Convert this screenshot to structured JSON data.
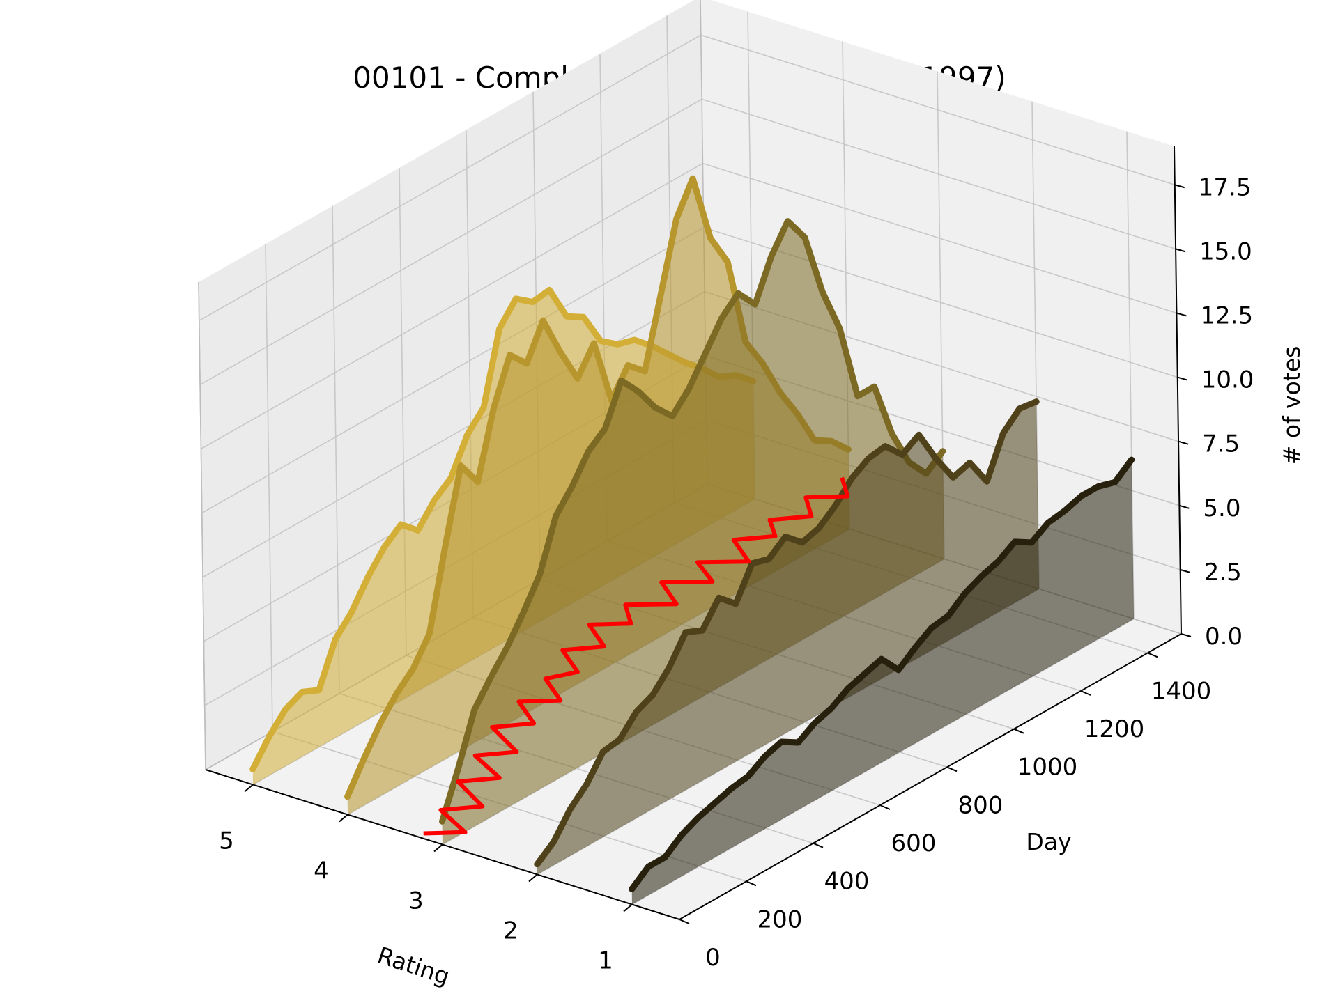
{
  "chart_data": {
    "type": "line",
    "projection": "3d",
    "title": "00101 - Complete Shamanic Princess (1997)",
    "xlabel": "Rating",
    "ylabel": "Day",
    "zlabel": "# of votes",
    "x_ticks": [
      "5",
      "4",
      "3",
      "2",
      "1"
    ],
    "y_ticks": [
      "0",
      "200",
      "400",
      "600",
      "800",
      "1000",
      "1200",
      "1400"
    ],
    "z_ticks": [
      "0.0",
      "2.5",
      "5.0",
      "7.5",
      "10.0",
      "12.5",
      "15.0",
      "17.5"
    ],
    "xlim": [
      0.5,
      5.5
    ],
    "ylim": [
      0,
      1500
    ],
    "zlim": [
      0,
      19
    ],
    "grid": true,
    "series": [
      {
        "rating": 5,
        "color": "#d4af37",
        "fill": true,
        "points": [
          [
            0,
            0.6
          ],
          [
            50,
            1.5
          ],
          [
            100,
            2.2
          ],
          [
            150,
            2.5
          ],
          [
            200,
            2.2
          ],
          [
            250,
            3.8
          ],
          [
            300,
            4.5
          ],
          [
            350,
            5.5
          ],
          [
            400,
            6.3
          ],
          [
            450,
            6.8
          ],
          [
            500,
            6.2
          ],
          [
            550,
            7.0
          ],
          [
            600,
            7.5
          ],
          [
            650,
            8.8
          ],
          [
            700,
            9.5
          ],
          [
            750,
            12.2
          ],
          [
            800,
            13.0
          ],
          [
            850,
            12.5
          ],
          [
            900,
            12.6
          ],
          [
            950,
            11.2
          ],
          [
            1000,
            10.8
          ],
          [
            1050,
            9.5
          ],
          [
            1100,
            9.0
          ],
          [
            1150,
            8.8
          ],
          [
            1200,
            8.2
          ],
          [
            1250,
            7.5
          ],
          [
            1300,
            6.8
          ],
          [
            1350,
            6.2
          ],
          [
            1400,
            5.5
          ],
          [
            1450,
            5.2
          ],
          [
            1500,
            4.6
          ]
        ]
      },
      {
        "rating": 4,
        "color": "#b8962e",
        "fill": true,
        "points": [
          [
            0,
            0.7
          ],
          [
            50,
            1.8
          ],
          [
            100,
            2.8
          ],
          [
            150,
            3.6
          ],
          [
            200,
            4.2
          ],
          [
            250,
            5.2
          ],
          [
            300,
            8.2
          ],
          [
            350,
            11.0
          ],
          [
            400,
            10.0
          ],
          [
            450,
            12.5
          ],
          [
            500,
            14.2
          ],
          [
            550,
            13.5
          ],
          [
            600,
            14.8
          ],
          [
            650,
            13.2
          ],
          [
            700,
            11.8
          ],
          [
            750,
            12.8
          ],
          [
            800,
            10.2
          ],
          [
            850,
            11.2
          ],
          [
            900,
            10.6
          ],
          [
            950,
            13.2
          ],
          [
            1000,
            15.8
          ],
          [
            1050,
            17.0
          ],
          [
            1100,
            14.3
          ],
          [
            1150,
            13.0
          ],
          [
            1200,
            9.5
          ],
          [
            1250,
            8.3
          ],
          [
            1300,
            6.8
          ],
          [
            1350,
            5.6
          ],
          [
            1400,
            4.2
          ],
          [
            1450,
            3.8
          ],
          [
            1500,
            3.1
          ]
        ]
      },
      {
        "rating": 3,
        "color": "#7c6a24",
        "fill": true,
        "points": [
          [
            0,
            0.9
          ],
          [
            50,
            2.6
          ],
          [
            100,
            4.5
          ],
          [
            150,
            5.4
          ],
          [
            200,
            6.2
          ],
          [
            250,
            7.2
          ],
          [
            300,
            8.3
          ],
          [
            350,
            10.2
          ],
          [
            400,
            11.0
          ],
          [
            450,
            12.0
          ],
          [
            500,
            12.5
          ],
          [
            550,
            14.0
          ],
          [
            600,
            13.2
          ],
          [
            650,
            12.2
          ],
          [
            700,
            11.5
          ],
          [
            750,
            12.2
          ],
          [
            800,
            13.2
          ],
          [
            850,
            14.2
          ],
          [
            900,
            14.8
          ],
          [
            950,
            14.0
          ],
          [
            1000,
            15.5
          ],
          [
            1050,
            16.5
          ],
          [
            1100,
            15.5
          ],
          [
            1150,
            13.0
          ],
          [
            1200,
            11.2
          ],
          [
            1250,
            8.2
          ],
          [
            1300,
            8.2
          ],
          [
            1350,
            6.0
          ],
          [
            1400,
            4.5
          ],
          [
            1450,
            3.7
          ],
          [
            1500,
            4.2
          ]
        ]
      },
      {
        "rating": 2,
        "color": "#4f421a",
        "fill": true,
        "points": [
          [
            0,
            0.4
          ],
          [
            50,
            0.9
          ],
          [
            100,
            1.8
          ],
          [
            150,
            2.4
          ],
          [
            200,
            3.3
          ],
          [
            250,
            3.4
          ],
          [
            300,
            4.1
          ],
          [
            350,
            4.4
          ],
          [
            400,
            5.1
          ],
          [
            450,
            6.1
          ],
          [
            500,
            5.8
          ],
          [
            550,
            6.7
          ],
          [
            600,
            6.1
          ],
          [
            650,
            7.3
          ],
          [
            700,
            7.1
          ],
          [
            750,
            7.6
          ],
          [
            800,
            7.0
          ],
          [
            850,
            7.2
          ],
          [
            900,
            7.7
          ],
          [
            950,
            8.4
          ],
          [
            1000,
            8.8
          ],
          [
            1050,
            8.9
          ],
          [
            1100,
            8.2
          ],
          [
            1150,
            8.6
          ],
          [
            1200,
            7.3
          ],
          [
            1250,
            6.2
          ],
          [
            1300,
            6.4
          ],
          [
            1350,
            5.3
          ],
          [
            1400,
            6.8
          ],
          [
            1450,
            7.4
          ],
          [
            1500,
            7.3
          ]
        ]
      },
      {
        "rating": 1,
        "color": "#27200d",
        "fill": true,
        "points": [
          [
            0,
            0.6
          ],
          [
            50,
            1.1
          ],
          [
            100,
            1.1
          ],
          [
            150,
            1.6
          ],
          [
            200,
            1.9
          ],
          [
            250,
            2.1
          ],
          [
            300,
            2.3
          ],
          [
            350,
            2.4
          ],
          [
            400,
            2.8
          ],
          [
            450,
            3.0
          ],
          [
            500,
            2.6
          ],
          [
            550,
            3.0
          ],
          [
            600,
            3.2
          ],
          [
            650,
            3.6
          ],
          [
            700,
            3.8
          ],
          [
            750,
            4.0
          ],
          [
            800,
            3.2
          ],
          [
            850,
            3.7
          ],
          [
            900,
            4.1
          ],
          [
            950,
            4.2
          ],
          [
            1000,
            4.7
          ],
          [
            1050,
            5.0
          ],
          [
            1100,
            5.2
          ],
          [
            1150,
            5.6
          ],
          [
            1200,
            5.2
          ],
          [
            1250,
            5.6
          ],
          [
            1300,
            5.7
          ],
          [
            1350,
            5.9
          ],
          [
            1400,
            5.9
          ],
          [
            1450,
            5.7
          ],
          [
            1500,
            6.2
          ]
        ]
      },
      {
        "name": "",
        "color": "#ff0000",
        "fill": false,
        "points": [
          [
            0,
            3.2,
            0.2
          ],
          [
            40,
            2.9,
            0.3
          ],
          [
            80,
            3.3,
            0.4
          ],
          [
            120,
            3.0,
            0.6
          ],
          [
            160,
            3.4,
            0.8
          ],
          [
            200,
            3.1,
            1.0
          ],
          [
            240,
            3.5,
            1.1
          ],
          [
            280,
            3.2,
            1.3
          ],
          [
            320,
            3.6,
            1.5
          ],
          [
            360,
            3.3,
            1.7
          ],
          [
            400,
            3.6,
            1.9
          ],
          [
            440,
            3.3,
            2.0
          ],
          [
            480,
            3.6,
            2.2
          ],
          [
            520,
            3.4,
            2.4
          ],
          [
            560,
            3.7,
            2.6
          ],
          [
            600,
            3.4,
            2.8
          ],
          [
            640,
            3.7,
            3.0
          ],
          [
            680,
            3.4,
            3.1
          ],
          [
            720,
            3.6,
            3.3
          ],
          [
            760,
            3.2,
            3.5
          ],
          [
            800,
            3.5,
            3.7
          ],
          [
            840,
            3.1,
            3.9
          ],
          [
            880,
            3.4,
            4.0
          ],
          [
            920,
            3.0,
            4.2
          ],
          [
            960,
            3.3,
            4.4
          ],
          [
            1000,
            3.0,
            4.6
          ],
          [
            1040,
            3.2,
            4.7
          ],
          [
            1080,
            2.9,
            4.9
          ],
          [
            1120,
            3.1,
            5.1
          ],
          [
            1160,
            2.8,
            5.2
          ],
          [
            1200,
            3.0,
            5.4
          ]
        ]
      }
    ]
  }
}
